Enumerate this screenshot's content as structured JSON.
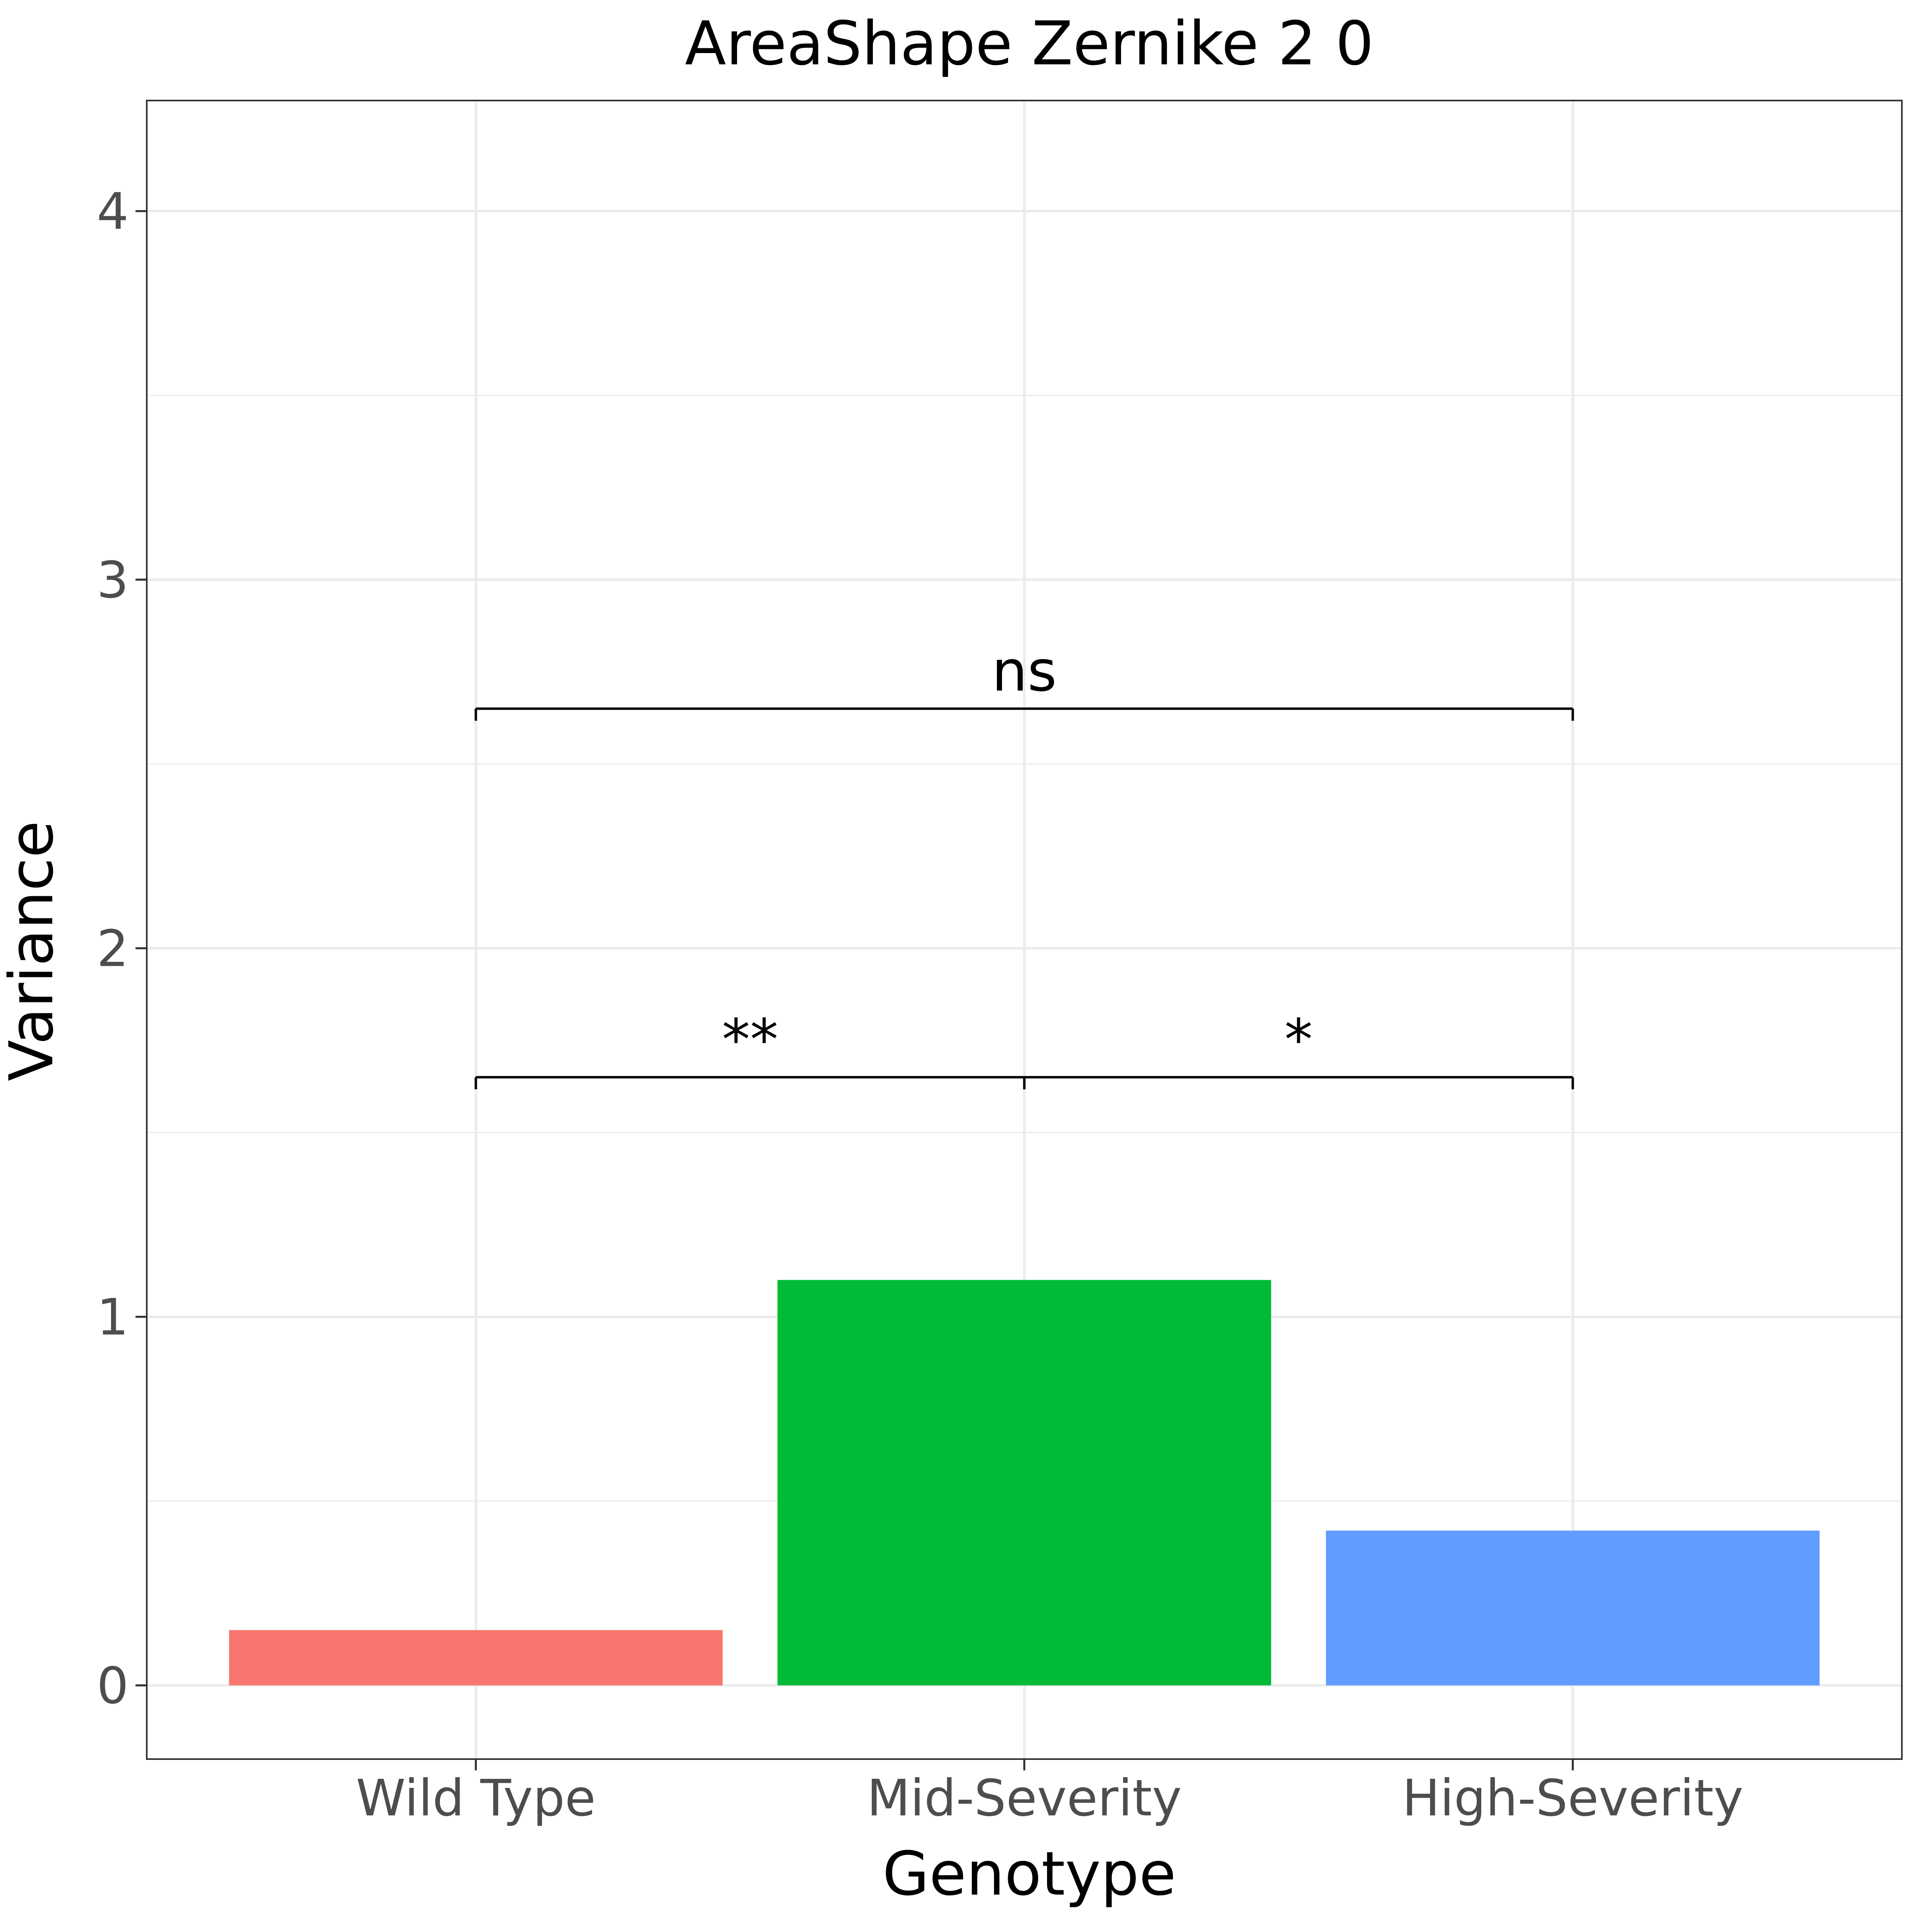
{
  "chart_data": {
    "type": "bar",
    "title": "AreaShape Zernike 2 0",
    "xlabel": "Genotype",
    "ylabel": "Variance",
    "categories": [
      "Wild Type",
      "Mid-Severity",
      "High-Severity"
    ],
    "values": [
      0.15,
      1.1,
      0.42
    ],
    "colors": [
      "#F8766D",
      "#00BA38",
      "#619CFF"
    ],
    "ylim": [
      -0.2,
      4.3
    ],
    "yticks": [
      0,
      1,
      2,
      3,
      4
    ],
    "grid": true,
    "significance": [
      {
        "from": "Wild Type",
        "to": "Mid-Severity",
        "y": 1.65,
        "label": "**"
      },
      {
        "from": "Mid-Severity",
        "to": "High-Severity",
        "y": 1.65,
        "label": "*"
      },
      {
        "from": "Wild Type",
        "to": "High-Severity",
        "y": 2.65,
        "label": "ns"
      }
    ]
  }
}
